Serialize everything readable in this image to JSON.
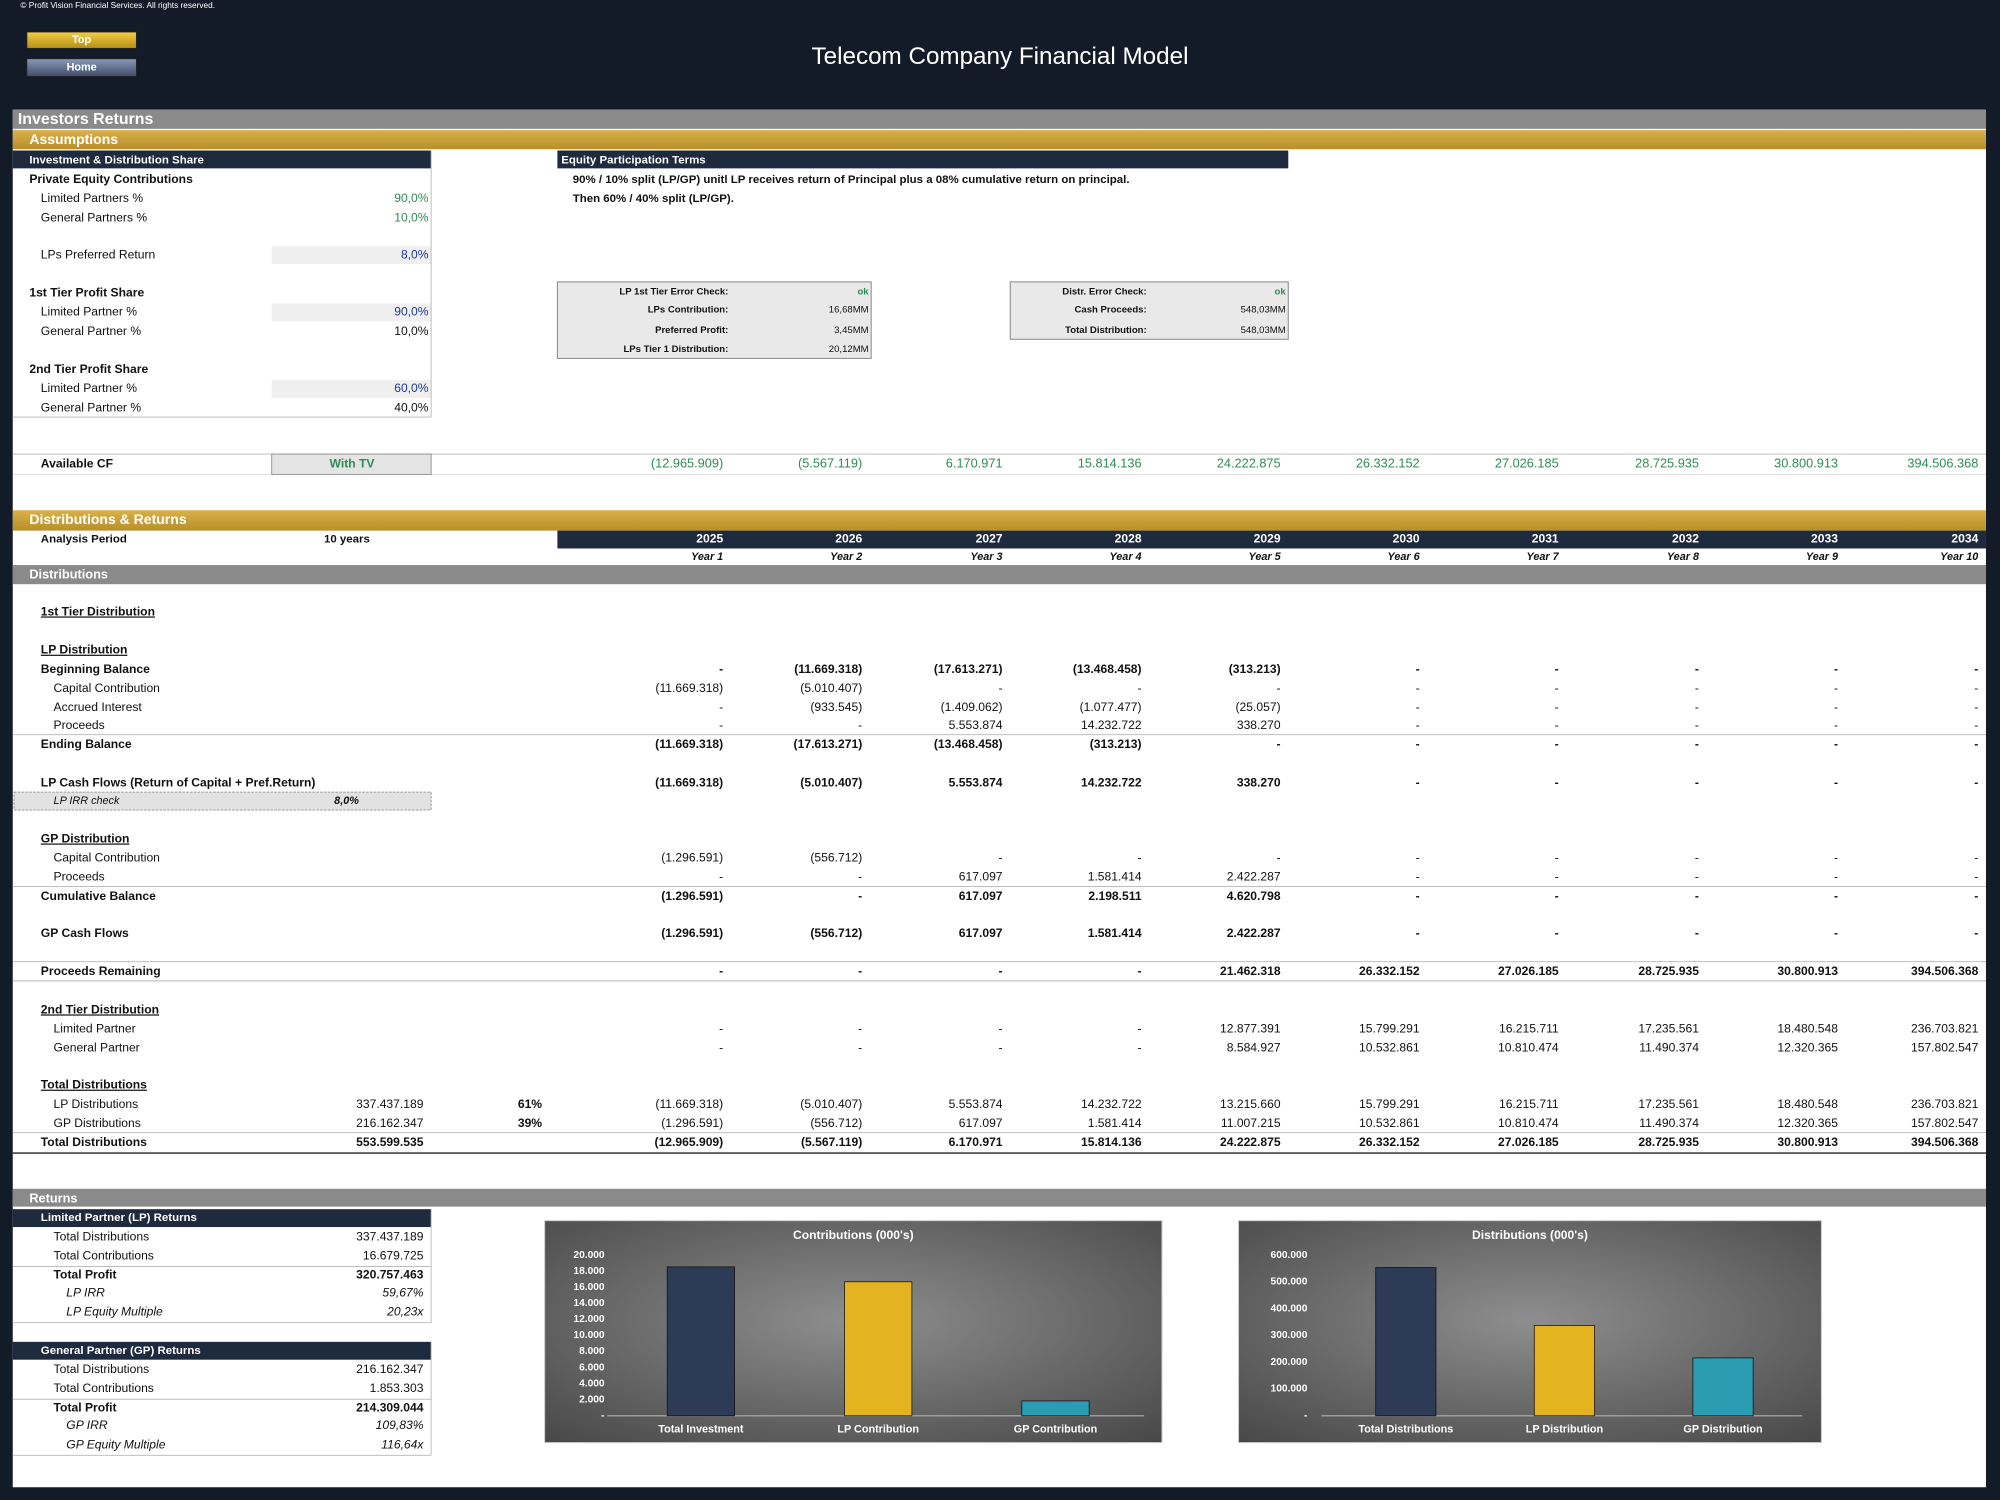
{
  "header": {
    "copyright": "© Profit Vision Financial Services. All rights reserved.",
    "buttons": [
      "Top",
      "Home"
    ],
    "title": "Telecom Company Financial Model"
  },
  "page_title": "Investors Returns",
  "assumptions": {
    "title": "Assumptions",
    "investment": {
      "header": "Investment & Distribution Share",
      "rows": [
        {
          "label": "Private Equity Contributions"
        },
        {
          "label": "Limited Partners %",
          "value": "90,0%"
        },
        {
          "label": "General Partners %",
          "value": "10,0%"
        },
        {
          "label": "LPs Preferred Return",
          "value": "8,0%"
        },
        {
          "label": "1st Tier Profit Share"
        },
        {
          "label": "Limited Partner %",
          "value": "90,0%"
        },
        {
          "label": "General Partner %",
          "value": "10,0%"
        },
        {
          "label": "2nd Tier Profit Share"
        },
        {
          "label": "Limited Partner %",
          "value": "60,0%"
        },
        {
          "label": "General Partner %",
          "value": "40,0%"
        }
      ]
    },
    "terms": {
      "header": "Equity Participation Terms",
      "lines": [
        "90% / 10% split (LP/GP) unitl LP receives return of Principal plus a 08% cumulative return on principal.",
        "Then 60% / 40% split (LP/GP)."
      ]
    },
    "checks_lp": [
      [
        "LP 1st Tier Error Check:",
        "ok"
      ],
      [
        "LPs Contribution:",
        "16,68MM"
      ],
      [
        "Preferred Profit:",
        "3,45MM"
      ],
      [
        "LPs Tier 1 Distribution:",
        "20,12MM"
      ]
    ],
    "checks_distr": [
      [
        "Distr. Error Check:",
        "ok"
      ],
      [
        "Cash Proceeds:",
        "548,03MM"
      ],
      [
        "Total Distribution:",
        "548,03MM"
      ]
    ],
    "available_cf": {
      "label": "Available CF",
      "option": "With TV",
      "values": [
        "(12.965.909)",
        "(5.567.119)",
        "6.170.971",
        "15.814.136",
        "24.222.875",
        "26.332.152",
        "27.026.185",
        "28.725.935",
        "30.800.913",
        "394.506.368"
      ]
    }
  },
  "distributions": {
    "title": "Distributions & Returns",
    "analysis_label": "Analysis Period",
    "analysis_value": "10 years",
    "years": [
      "2025",
      "2026",
      "2027",
      "2028",
      "2029",
      "2030",
      "2031",
      "2032",
      "2033",
      "2034"
    ],
    "year_labels": [
      "Year 1",
      "Year 2",
      "Year 3",
      "Year 4",
      "Year 5",
      "Year 6",
      "Year 7",
      "Year 8",
      "Year 9",
      "Year 10"
    ],
    "section": "Distributions",
    "rows": [
      {
        "label": "1st Tier Distribution"
      },
      {
        "label": "LP Distribution"
      },
      {
        "label": "Beginning Balance",
        "values": [
          "-",
          "(11.669.318)",
          "(17.613.271)",
          "(13.468.458)",
          "(313.213)",
          "-",
          "-",
          "-",
          "-",
          "-"
        ]
      },
      {
        "label": "Capital Contribution",
        "values": [
          "(11.669.318)",
          "(5.010.407)",
          "-",
          "-",
          "-",
          "-",
          "-",
          "-",
          "-",
          "-"
        ]
      },
      {
        "label": "Accrued Interest",
        "values": [
          "-",
          "(933.545)",
          "(1.409.062)",
          "(1.077.477)",
          "(25.057)",
          "-",
          "-",
          "-",
          "-",
          "-"
        ]
      },
      {
        "label": "Proceeds",
        "values": [
          "-",
          "-",
          "5.553.874",
          "14.232.722",
          "338.270",
          "-",
          "-",
          "-",
          "-",
          "-"
        ]
      },
      {
        "label": "Ending Balance",
        "values": [
          "(11.669.318)",
          "(17.613.271)",
          "(13.468.458)",
          "(313.213)",
          "-",
          "-",
          "-",
          "-",
          "-",
          "-"
        ]
      },
      {
        "label": "LP Cash Flows (Return of Capital + Pref.Return)",
        "values": [
          "(11.669.318)",
          "(5.010.407)",
          "5.553.874",
          "14.232.722",
          "338.270",
          "-",
          "-",
          "-",
          "-",
          "-"
        ]
      },
      {
        "label": "LP IRR check",
        "total": "8,0%"
      },
      {
        "label": "GP Distribution"
      },
      {
        "label": "Capital Contribution",
        "values": [
          "(1.296.591)",
          "(556.712)",
          "-",
          "-",
          "-",
          "-",
          "-",
          "-",
          "-",
          "-"
        ]
      },
      {
        "label": "Proceeds",
        "values": [
          "-",
          "-",
          "617.097",
          "1.581.414",
          "2.422.287",
          "-",
          "-",
          "-",
          "-",
          "-"
        ]
      },
      {
        "label": "Cumulative Balance",
        "values": [
          "(1.296.591)",
          "-",
          "617.097",
          "2.198.511",
          "4.620.798",
          "-",
          "-",
          "-",
          "-",
          "-"
        ]
      },
      {
        "label": "GP Cash Flows",
        "values": [
          "(1.296.591)",
          "(556.712)",
          "617.097",
          "1.581.414",
          "2.422.287",
          "-",
          "-",
          "-",
          "-",
          "-"
        ]
      },
      {
        "label": "Proceeds Remaining",
        "values": [
          "-",
          "-",
          "-",
          "-",
          "21.462.318",
          "26.332.152",
          "27.026.185",
          "28.725.935",
          "30.800.913",
          "394.506.368"
        ]
      },
      {
        "label": "2nd Tier Distribution"
      },
      {
        "label": "Limited Partner",
        "values": [
          "-",
          "-",
          "-",
          "-",
          "12.877.391",
          "15.799.291",
          "16.215.711",
          "17.235.561",
          "18.480.548",
          "236.703.821"
        ]
      },
      {
        "label": "General Partner",
        "values": [
          "-",
          "-",
          "-",
          "-",
          "8.584.927",
          "10.532.861",
          "10.810.474",
          "11.490.374",
          "12.320.365",
          "157.802.547"
        ]
      },
      {
        "label": "Total Distributions"
      },
      {
        "label": "LP Distributions",
        "total": "337.437.189",
        "share": "61%",
        "values": [
          "(11.669.318)",
          "(5.010.407)",
          "5.553.874",
          "14.232.722",
          "13.215.660",
          "15.799.291",
          "16.215.711",
          "17.235.561",
          "18.480.548",
          "236.703.821"
        ]
      },
      {
        "label": "GP Distributions",
        "total": "216.162.347",
        "share": "39%",
        "values": [
          "(1.296.591)",
          "(556.712)",
          "617.097",
          "1.581.414",
          "11.007.215",
          "10.532.861",
          "10.810.474",
          "11.490.374",
          "12.320.365",
          "157.802.547"
        ]
      },
      {
        "label": "Total Distributions",
        "total": "553.599.535",
        "values": [
          "(12.965.909)",
          "(5.567.119)",
          "6.170.971",
          "15.814.136",
          "24.222.875",
          "26.332.152",
          "27.026.185",
          "28.725.935",
          "30.800.913",
          "394.506.368"
        ]
      }
    ]
  },
  "returns": {
    "title": "Returns",
    "lp": {
      "header": "Limited Partner (LP) Returns",
      "rows": [
        [
          "Total Distributions",
          "337.437.189"
        ],
        [
          "Total Contributions",
          "16.679.725"
        ],
        [
          "Total Profit",
          "320.757.463"
        ],
        [
          "LP IRR",
          "59,67%"
        ],
        [
          "LP Equity Multiple",
          "20,23x"
        ]
      ]
    },
    "gp": {
      "header": "General Partner (GP) Returns",
      "rows": [
        [
          "Total Distributions",
          "216.162.347"
        ],
        [
          "Total Contributions",
          "1.853.303"
        ],
        [
          "Total Profit",
          "214.309.044"
        ],
        [
          "GP IRR",
          "109,83%"
        ],
        [
          "GP Equity Multiple",
          "116,64x"
        ]
      ]
    }
  },
  "chart_data": [
    {
      "type": "bar",
      "title": "Contributions (000's)",
      "categories": [
        "Total Investment",
        "LP Contribution",
        "GP Contribution"
      ],
      "values": [
        18533,
        16680,
        1853
      ],
      "colors": [
        "#2d3b57",
        "#e3b420",
        "#2a9db3"
      ],
      "ylim": [
        0,
        20000
      ],
      "yticks": [
        {
          "value": 0,
          "label": "-"
        },
        {
          "value": 2000,
          "label": "2.000"
        },
        {
          "value": 4000,
          "label": "4.000"
        },
        {
          "value": 6000,
          "label": "6.000"
        },
        {
          "value": 8000,
          "label": "8.000"
        },
        {
          "value": 10000,
          "label": "10.000"
        },
        {
          "value": 12000,
          "label": "12.000"
        },
        {
          "value": 14000,
          "label": "14.000"
        },
        {
          "value": 16000,
          "label": "16.000"
        },
        {
          "value": 18000,
          "label": "18.000"
        },
        {
          "value": 20000,
          "label": "20.000"
        }
      ],
      "grid": false
    },
    {
      "type": "bar",
      "title": "Distributions (000's)",
      "categories": [
        "Total Distributions",
        "LP Distribution",
        "GP Distribution"
      ],
      "values": [
        553600,
        337437,
        216162
      ],
      "colors": [
        "#2d3b57",
        "#e3b420",
        "#2a9db3"
      ],
      "ylim": [
        0,
        600000
      ],
      "yticks": [
        {
          "value": 0,
          "label": "-"
        },
        {
          "value": 100000,
          "label": "100.000"
        },
        {
          "value": 200000,
          "label": "200.000"
        },
        {
          "value": 300000,
          "label": "300.000"
        },
        {
          "value": 400000,
          "label": "400.000"
        },
        {
          "value": 500000,
          "label": "500.000"
        },
        {
          "value": 600000,
          "label": "600.000"
        }
      ],
      "grid": false
    }
  ]
}
